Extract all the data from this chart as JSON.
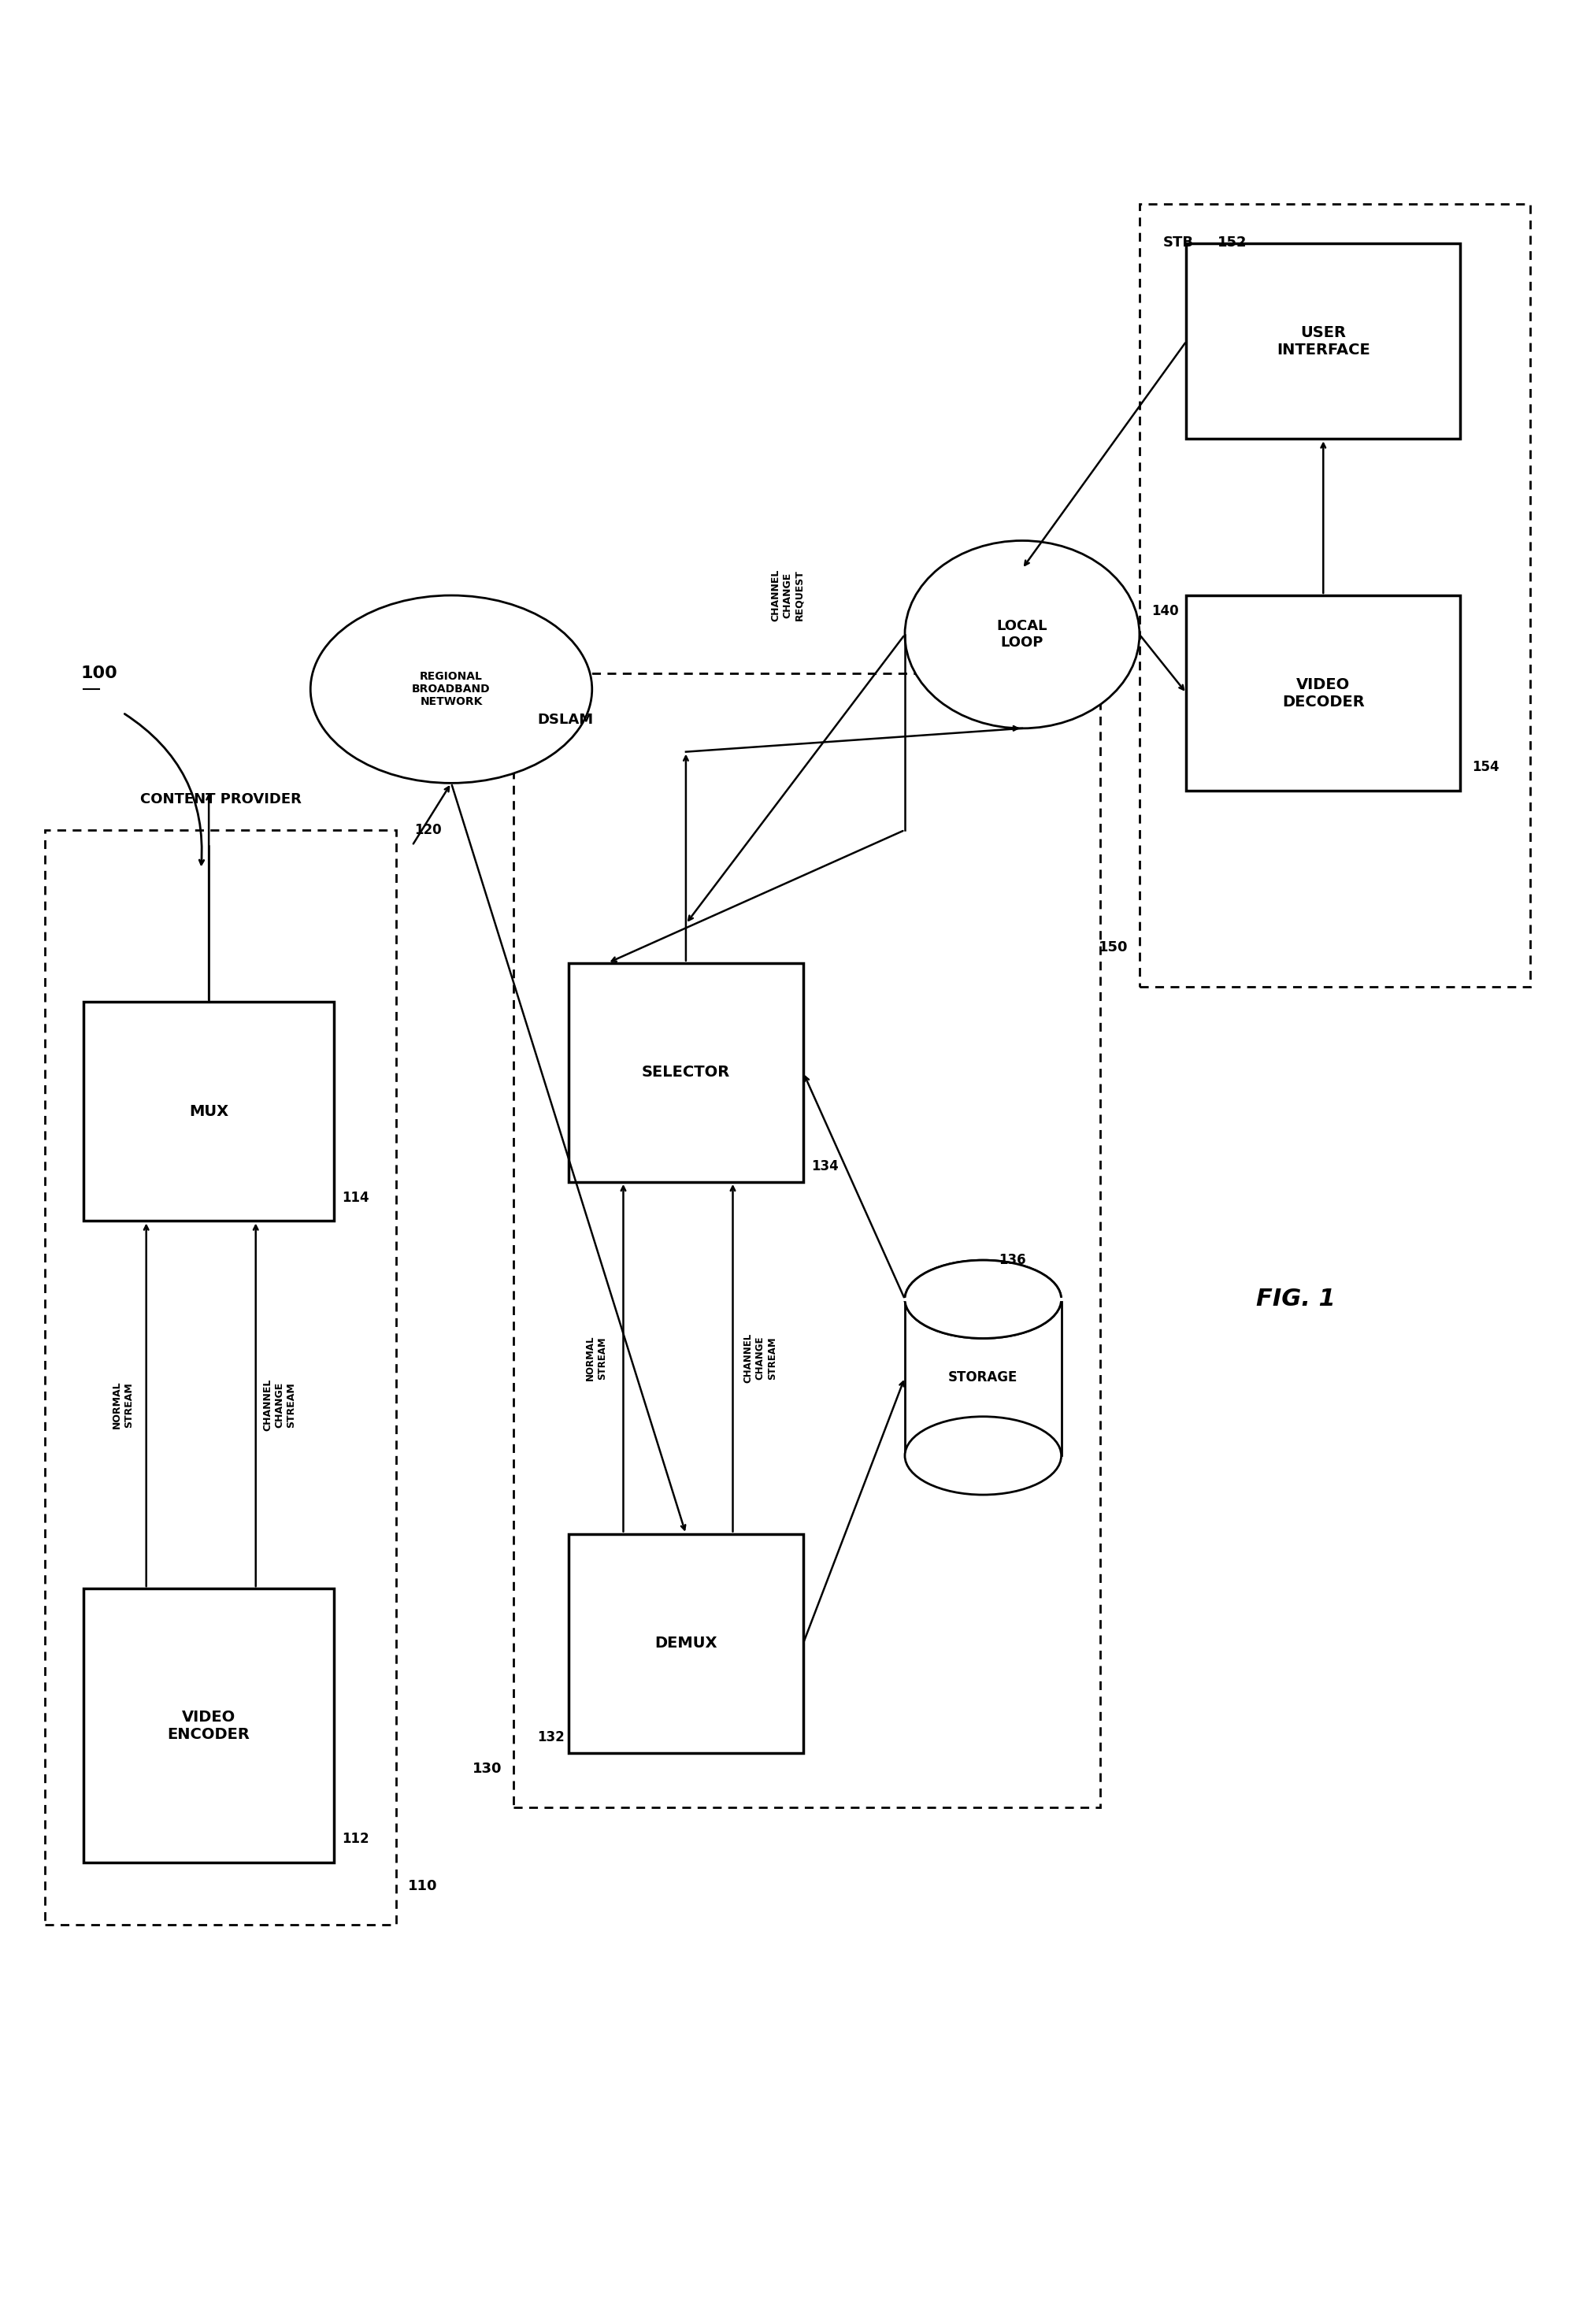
{
  "title": "FIG. 1",
  "background": "#ffffff",
  "fig_label": "100",
  "components": {
    "content_provider_box": {
      "label": "CONTENT PROVIDER",
      "id": "110"
    },
    "video_encoder": {
      "label": "VIDEO\nENCODER",
      "id": "112"
    },
    "mux": {
      "label": "MUX",
      "id": "114"
    },
    "regional_network": {
      "label": "REGIONAL\nBROADBAND\nNETWORK",
      "id": "120"
    },
    "dslam_box": {
      "label": "DSLAM",
      "id": "130"
    },
    "demux": {
      "label": "DEMUX",
      "id": "132"
    },
    "selector": {
      "label": "SELECTOR",
      "id": "134"
    },
    "storage": {
      "label": "STORAGE",
      "id": "136"
    },
    "local_loop": {
      "label": "LOCAL\nLOOP",
      "id": "140"
    },
    "stb_box": {
      "label": "STB",
      "id": "150"
    },
    "user_interface": {
      "label": "USER\nINTERFACE",
      "id": "152"
    },
    "video_decoder": {
      "label": "VIDEO\nDECODER",
      "id": "154"
    }
  }
}
